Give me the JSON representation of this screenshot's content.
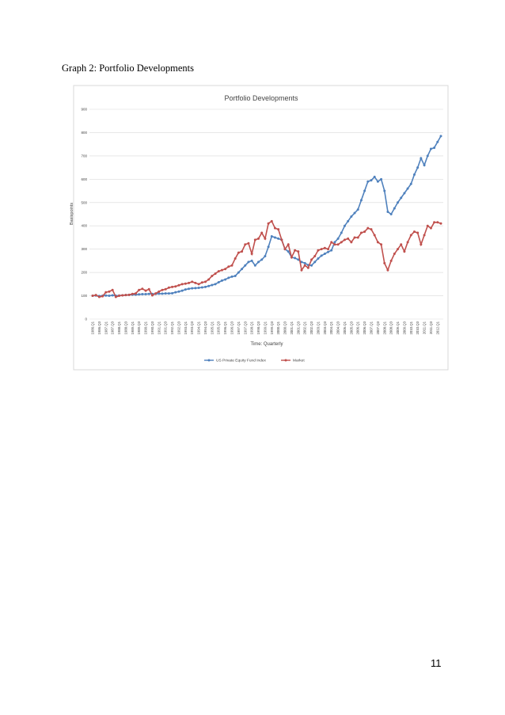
{
  "caption": "Graph 2: Portfolio Developments",
  "page_number": "11",
  "chart_data": {
    "type": "line",
    "title": "Portfolio Developments",
    "x_label": "Time: Quarterly",
    "y_label": "Basispoints",
    "categories": [
      "1986.Q1",
      null,
      "1986.Q3",
      null,
      "1987.Q1",
      null,
      "1987.Q3",
      null,
      "1988.Q1",
      null,
      "1988.Q3",
      null,
      "1989.Q1",
      null,
      "1989.Q3",
      null,
      "1990.Q1",
      null,
      "1990.Q3",
      null,
      "1991.Q1",
      null,
      "1991.Q3",
      null,
      "1992.Q1",
      null,
      "1992.Q3",
      null,
      "1993.Q1",
      null,
      "1993.Q3",
      null,
      "1994.Q1",
      null,
      "1994.Q3",
      null,
      "1995.Q1",
      null,
      "1995.Q3",
      null,
      "1996.Q1",
      null,
      "1996.Q3",
      null,
      "1997.Q1",
      null,
      "1997.Q3",
      null,
      "1998.Q1",
      null,
      "1998.Q3",
      null,
      "1999.Q1",
      null,
      "1999.Q3",
      null,
      "2000.Q1",
      null,
      "2000.Q3",
      null,
      "2001.Q1",
      null,
      "2001.Q3",
      null,
      "2002.Q1",
      null,
      "2002.Q3",
      null,
      "2003.Q1",
      null,
      "2003.Q3",
      null,
      "2004.Q1",
      null,
      "2004.Q3",
      null,
      "2005.Q1",
      null,
      "2005.Q3",
      null,
      "2006.Q1",
      null,
      "2006.Q3",
      null,
      "2007.Q1",
      null,
      "2007.Q3",
      null,
      "2008.Q1",
      null,
      "2008.Q3",
      null,
      "2009.Q1",
      null,
      "2009.Q3",
      null,
      "2010.Q1",
      null,
      "2010.Q3",
      null,
      "2011.Q1",
      null,
      "2011.Q3",
      null,
      "2012.Q1",
      null
    ],
    "series": [
      {
        "name": "US Private Equity Fund Index",
        "color": "#4f81bd",
        "values": [
          100,
          101,
          99,
          100,
          101,
          100,
          102,
          100,
          101,
          102,
          103,
          104,
          105,
          105,
          106,
          107,
          107,
          108,
          108,
          108,
          109,
          109,
          110,
          110,
          111,
          115,
          118,
          122,
          127,
          130,
          132,
          133,
          134,
          136,
          138,
          142,
          146,
          150,
          158,
          165,
          170,
          177,
          182,
          185,
          200,
          215,
          230,
          245,
          250,
          230,
          245,
          255,
          270,
          310,
          355,
          350,
          345,
          340,
          300,
          290,
          265,
          262,
          255,
          245,
          240,
          232,
          230,
          245,
          260,
          272,
          280,
          288,
          295,
          330,
          345,
          370,
          400,
          420,
          440,
          455,
          470,
          510,
          550,
          590,
          595,
          610,
          590,
          600,
          550,
          460,
          450,
          475,
          500,
          520,
          540,
          560,
          580,
          620,
          650,
          690,
          660,
          700,
          730,
          735,
          760,
          785
        ]
      },
      {
        "name": "Market",
        "color": "#c0504d",
        "values": [
          100,
          103,
          95,
          98,
          115,
          118,
          125,
          95,
          100,
          102,
          103,
          104,
          108,
          110,
          125,
          130,
          122,
          128,
          102,
          110,
          118,
          125,
          128,
          135,
          138,
          140,
          145,
          150,
          152,
          155,
          160,
          155,
          150,
          157,
          160,
          170,
          185,
          195,
          205,
          210,
          215,
          225,
          230,
          260,
          285,
          290,
          320,
          325,
          280,
          340,
          345,
          370,
          345,
          410,
          420,
          390,
          385,
          340,
          300,
          320,
          265,
          295,
          290,
          210,
          230,
          220,
          255,
          270,
          295,
          300,
          305,
          300,
          330,
          320,
          320,
          330,
          340,
          345,
          330,
          350,
          350,
          370,
          375,
          390,
          385,
          360,
          330,
          320,
          240,
          210,
          250,
          280,
          300,
          320,
          290,
          330,
          360,
          375,
          370,
          320,
          360,
          400,
          390,
          415,
          415,
          410
        ]
      }
    ],
    "ylim": [
      0,
      900
    ],
    "yticks": [
      0,
      100,
      200,
      300,
      400,
      500,
      600,
      700,
      800,
      900
    ],
    "grid": true,
    "legend": "bottom"
  }
}
